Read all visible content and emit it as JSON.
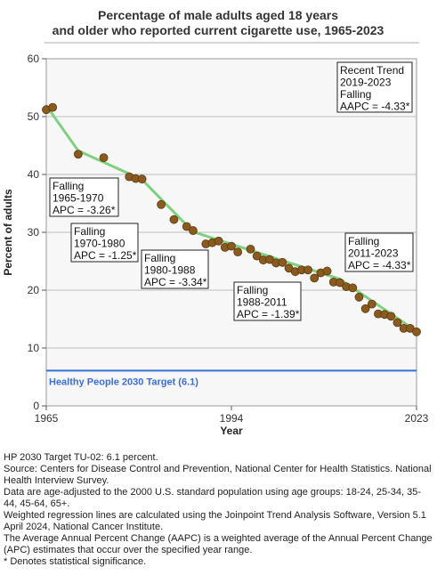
{
  "chart_data": {
    "type": "line",
    "title_lines": [
      "Percentage of male adults aged 18 years",
      "and older who reported current cigarette use, 1965-2023"
    ],
    "xlabel": "Year",
    "ylabel": "Percent of adults",
    "xlim": [
      1965,
      2023
    ],
    "ylim": [
      0,
      60
    ],
    "x_ticks": [
      1965,
      1994,
      2023
    ],
    "y_ticks": [
      0,
      10,
      20,
      30,
      40,
      50,
      60
    ],
    "grid": "horizontal",
    "colors": {
      "points": "#8b5a1e",
      "point_edge": "#5a3a10",
      "trend": "#7fd07f",
      "target": "#3a6fd8",
      "plot_bg": "#f7f7f7"
    },
    "observed": [
      {
        "x": 1965,
        "y": 51.2
      },
      {
        "x": 1966,
        "y": 51.6
      },
      {
        "x": 1970,
        "y": 43.5
      },
      {
        "x": 1974,
        "y": 42.9
      },
      {
        "x": 1978,
        "y": 39.6
      },
      {
        "x": 1979,
        "y": 39.3
      },
      {
        "x": 1980,
        "y": 39.2
      },
      {
        "x": 1983,
        "y": 34.8
      },
      {
        "x": 1985,
        "y": 32.2
      },
      {
        "x": 1987,
        "y": 31.0
      },
      {
        "x": 1988,
        "y": 30.3
      },
      {
        "x": 1990,
        "y": 28.0
      },
      {
        "x": 1991,
        "y": 28.2
      },
      {
        "x": 1992,
        "y": 28.5
      },
      {
        "x": 1993,
        "y": 27.4
      },
      {
        "x": 1994,
        "y": 27.6
      },
      {
        "x": 1995,
        "y": 26.6
      },
      {
        "x": 1997,
        "y": 27.1
      },
      {
        "x": 1998,
        "y": 25.9
      },
      {
        "x": 1999,
        "y": 25.2
      },
      {
        "x": 2000,
        "y": 25.3
      },
      {
        "x": 2001,
        "y": 24.7
      },
      {
        "x": 2002,
        "y": 24.8
      },
      {
        "x": 2003,
        "y": 23.8
      },
      {
        "x": 2004,
        "y": 23.2
      },
      {
        "x": 2005,
        "y": 23.5
      },
      {
        "x": 2006,
        "y": 23.5
      },
      {
        "x": 2007,
        "y": 22.1
      },
      {
        "x": 2008,
        "y": 23.0
      },
      {
        "x": 2009,
        "y": 23.3
      },
      {
        "x": 2010,
        "y": 21.4
      },
      {
        "x": 2011,
        "y": 21.3
      },
      {
        "x": 2012,
        "y": 20.6
      },
      {
        "x": 2013,
        "y": 20.4
      },
      {
        "x": 2014,
        "y": 18.8
      },
      {
        "x": 2015,
        "y": 16.8
      },
      {
        "x": 2016,
        "y": 17.6
      },
      {
        "x": 2017,
        "y": 15.9
      },
      {
        "x": 2018,
        "y": 15.8
      },
      {
        "x": 2019,
        "y": 15.5
      },
      {
        "x": 2020,
        "y": 14.4
      },
      {
        "x": 2021,
        "y": 13.4
      },
      {
        "x": 2022,
        "y": 13.4
      },
      {
        "x": 2023,
        "y": 12.8
      }
    ],
    "trend_line": [
      {
        "x": 1965,
        "y": 51.9
      },
      {
        "x": 1970,
        "y": 44.1
      },
      {
        "x": 1980,
        "y": 39.1
      },
      {
        "x": 1988,
        "y": 30.1
      },
      {
        "x": 2011,
        "y": 21.9
      },
      {
        "x": 2023,
        "y": 12.9
      }
    ],
    "target": {
      "value": 6.1,
      "label": "Healthy People 2030 Target (6.1)"
    },
    "annotations": [
      {
        "lines": [
          "Recent Trend",
          "2019-2023",
          "Falling",
          "AAPC = -4.33*"
        ]
      },
      {
        "lines": [
          "Falling",
          "1965-1970",
          "APC = -3.26*"
        ]
      },
      {
        "lines": [
          "Falling",
          "1970-1980",
          "APC = -1.25*"
        ]
      },
      {
        "lines": [
          "Falling",
          "1980-1988",
          "APC = -3.34*"
        ]
      },
      {
        "lines": [
          "Falling",
          "1988-2011",
          "APC = -1.39*"
        ]
      },
      {
        "lines": [
          "Falling",
          "2011-2023",
          "APC = -4.33*"
        ]
      }
    ]
  },
  "notes": [
    "HP 2030 Target TU-02: 6.1 percent.",
    "Source: Centers for Disease Control and Prevention, National Center for Health Statistics. National Health Interview Survey.",
    "Data are age-adjusted to the 2000 U.S. standard population using age groups: 18-24, 25-34, 35-44, 45-64, 65+.",
    "Weighted regression lines are calculated using the Joinpoint Trend Analysis Software, Version 5.1 April 2024, National Cancer Institute.",
    "The Average Annual Percent Change (AAPC) is a weighted average of the Annual Percent Change (APC) estimates that occur over the specified year range.",
    "* Denotes statistical significance."
  ]
}
